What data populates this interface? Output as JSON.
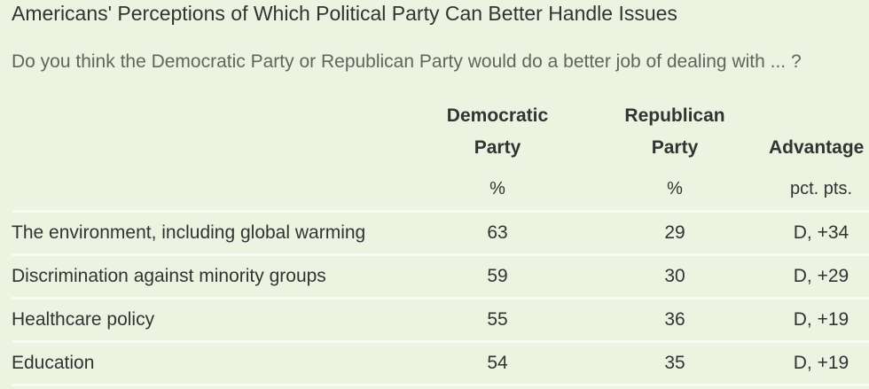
{
  "title": "Americans' Perceptions of Which Political Party Can Better Handle Issues",
  "subtitle": "Do you think the Democratic Party or Republican Party would do a better job of dealing with ... ?",
  "columns": {
    "democratic": {
      "line1": "Democratic",
      "line2": "Party",
      "unit": "%"
    },
    "republican": {
      "line1": "Republican",
      "line2": "Party",
      "unit": "%"
    },
    "advantage": {
      "line1": "Advantage",
      "unit": "pct. pts."
    }
  },
  "rows": [
    {
      "issue": "The environment, including global warming",
      "democratic": "63",
      "republican": "29",
      "advantage": "D, +34"
    },
    {
      "issue": "Discrimination against minority groups",
      "democratic": "59",
      "republican": "30",
      "advantage": "D, +29"
    },
    {
      "issue": "Healthcare policy",
      "democratic": "55",
      "republican": "36",
      "advantage": "D, +19"
    },
    {
      "issue": "Education",
      "democratic": "54",
      "republican": "35",
      "advantage": "D, +19"
    }
  ],
  "colors": {
    "background": "#ecf3e0",
    "divider": "#f8fbf3",
    "text": "#333333",
    "subtitle": "#5f6660"
  }
}
